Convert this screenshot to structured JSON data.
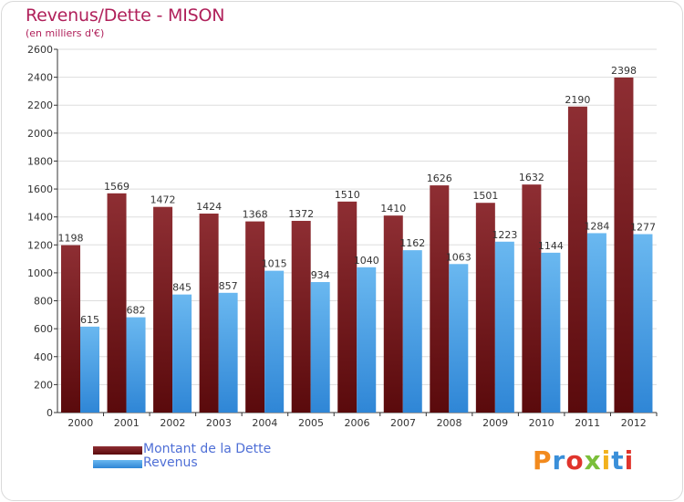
{
  "header": {
    "title": "Revenus/Dette - MISON",
    "subtitle": "(en milliers d'€)"
  },
  "legend": {
    "items": [
      {
        "label": "Montant de la Dette",
        "color": "#6b0d10"
      },
      {
        "label": "Revenus",
        "color": "#3f9be0"
      }
    ]
  },
  "logo": {
    "text": "Proxiti",
    "letter_colors": [
      "#f28a1d",
      "#3a8fd9",
      "#e0342c",
      "#7bbf3a",
      "#f2b21d",
      "#3a8fd9",
      "#e0342c"
    ]
  },
  "colors": {
    "debt_dark": "#5a0a0c",
    "debt_light": "#8e2e33",
    "rev_dark": "#2f86d6",
    "rev_light": "#6ab8f0",
    "grid": "#dddddd",
    "axis": "#333333"
  },
  "chart_data": {
    "type": "bar",
    "title": "Revenus/Dette - MISON",
    "ylabel": "(en milliers d'€)",
    "xlabel": "",
    "ylim": [
      0,
      2600
    ],
    "yticks": [
      0,
      200,
      400,
      600,
      800,
      1000,
      1200,
      1400,
      1600,
      1800,
      2000,
      2200,
      2400,
      2600
    ],
    "grid": true,
    "legend_position": "bottom-left",
    "categories": [
      "2000",
      "2001",
      "2002",
      "2003",
      "2004",
      "2005",
      "2006",
      "2007",
      "2008",
      "2009",
      "2010",
      "2011",
      "2012"
    ],
    "series": [
      {
        "name": "Montant de la Dette",
        "values": [
          1198,
          1569,
          1472,
          1424,
          1368,
          1372,
          1510,
          1410,
          1626,
          1501,
          1632,
          2190,
          2398
        ]
      },
      {
        "name": "Revenus",
        "values": [
          615,
          682,
          845,
          857,
          1015,
          934,
          1040,
          1162,
          1063,
          1223,
          1144,
          1284,
          1277
        ]
      }
    ]
  }
}
